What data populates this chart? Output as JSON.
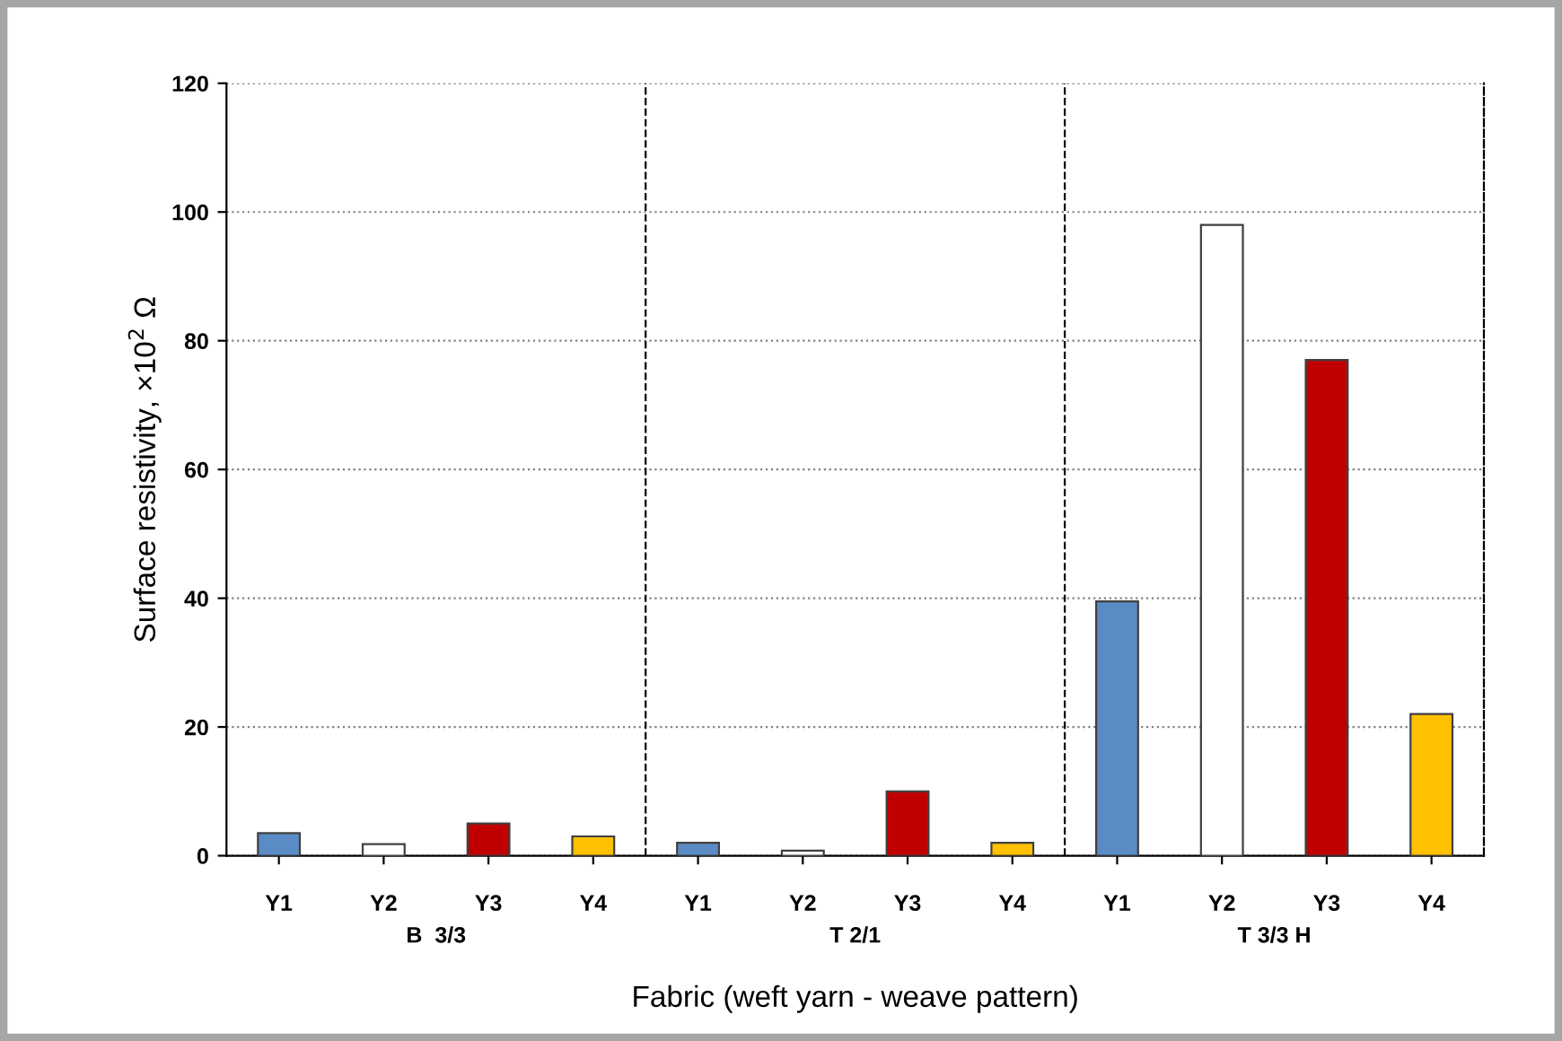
{
  "chart_data": {
    "type": "bar",
    "xlabel": "Fabric (weft yarn - weave pattern)",
    "ylabel": "Surface resistivity, ×10$^{2}$ Ω",
    "categories": [
      "Y1",
      "Y2",
      "Y3",
      "Y4",
      "Y1",
      "Y2",
      "Y3",
      "Y4",
      "Y1",
      "Y2",
      "Y3",
      "Y4"
    ],
    "values": [
      3.5,
      1.8,
      5,
      3,
      2,
      0.8,
      10,
      2,
      39.5,
      98,
      77,
      22
    ],
    "colors": [
      "#5b8bc4",
      "#ffffff",
      "#c00000",
      "#ffc000",
      "#5b8bc4",
      "#ffffff",
      "#c00000",
      "#ffc000",
      "#5b8bc4",
      "#ffffff",
      "#c00000",
      "#ffc000"
    ],
    "annotations": [
      "B  3/3",
      "T 2/1",
      "T 3/3 H"
    ],
    "ylim": [
      0,
      120
    ],
    "yticks": [
      0,
      20,
      40,
      60,
      80,
      100,
      120
    ],
    "grid": "y"
  }
}
